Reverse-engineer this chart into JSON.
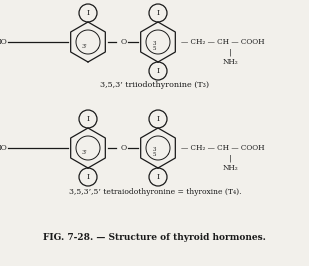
{
  "title": "FIG. 7-28. — Structure of thyroid hormones.",
  "molecule1_label": "3,5,3’ triiodothyronine (T₃)",
  "molecule2_label": "3,5,3’,5’ tetraiodothyronine = thyroxine (T₄).",
  "bg_color": "#f2f0eb",
  "ring_color": "#1a1a1a",
  "text_color": "#1a1a1a",
  "font_family": "serif"
}
